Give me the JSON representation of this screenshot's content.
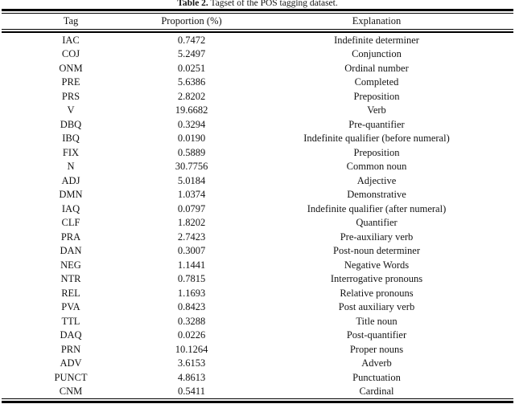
{
  "caption": {
    "label": "Table 2.",
    "text": " Tagset of the POS tagging dataset."
  },
  "colors": {
    "text": "#141414",
    "rule": "#000000",
    "background": "#ffffff"
  },
  "table": {
    "headers": {
      "tag": "Tag",
      "proportion": "Proportion (%)",
      "explanation": "Explanation"
    },
    "rows": [
      {
        "tag": "IAC",
        "proportion": "0.7472",
        "explanation": "Indefinite determiner"
      },
      {
        "tag": "COJ",
        "proportion": "5.2497",
        "explanation": "Conjunction"
      },
      {
        "tag": "ONM",
        "proportion": "0.0251",
        "explanation": "Ordinal number"
      },
      {
        "tag": "PRE",
        "proportion": "5.6386",
        "explanation": "Completed"
      },
      {
        "tag": "PRS",
        "proportion": "2.8202",
        "explanation": "Preposition"
      },
      {
        "tag": "V",
        "proportion": "19.6682",
        "explanation": "Verb"
      },
      {
        "tag": "DBQ",
        "proportion": "0.3294",
        "explanation": "Pre-quantifier"
      },
      {
        "tag": "IBQ",
        "proportion": "0.0190",
        "explanation": "Indefinite qualifier (before numeral)"
      },
      {
        "tag": "FIX",
        "proportion": "0.5889",
        "explanation": "Preposition"
      },
      {
        "tag": "N",
        "proportion": "30.7756",
        "explanation": "Common noun"
      },
      {
        "tag": "ADJ",
        "proportion": "5.0184",
        "explanation": "Adjective"
      },
      {
        "tag": "DMN",
        "proportion": "1.0374",
        "explanation": "Demonstrative"
      },
      {
        "tag": "IAQ",
        "proportion": "0.0797",
        "explanation": "Indefinite qualifier (after numeral)"
      },
      {
        "tag": "CLF",
        "proportion": "1.8202",
        "explanation": "Quantifier"
      },
      {
        "tag": "PRA",
        "proportion": "2.7423",
        "explanation": "Pre-auxiliary verb"
      },
      {
        "tag": "DAN",
        "proportion": "0.3007",
        "explanation": "Post-noun determiner"
      },
      {
        "tag": "NEG",
        "proportion": "1.1441",
        "explanation": "Negative Words"
      },
      {
        "tag": "NTR",
        "proportion": "0.7815",
        "explanation": "Interrogative pronouns"
      },
      {
        "tag": "REL",
        "proportion": "1.1693",
        "explanation": "Relative pronouns"
      },
      {
        "tag": "PVA",
        "proportion": "0.8423",
        "explanation": "Post auxiliary verb"
      },
      {
        "tag": "TTL",
        "proportion": "0.3288",
        "explanation": "Title noun"
      },
      {
        "tag": "DAQ",
        "proportion": "0.0226",
        "explanation": "Post-quantifier"
      },
      {
        "tag": "PRN",
        "proportion": "10.1264",
        "explanation": "Proper nouns"
      },
      {
        "tag": "ADV",
        "proportion": "3.6153",
        "explanation": "Adverb"
      },
      {
        "tag": "PUNCT",
        "proportion": "4.8613",
        "explanation": "Punctuation"
      },
      {
        "tag": "CNM",
        "proportion": "0.5411",
        "explanation": "Cardinal"
      }
    ]
  }
}
